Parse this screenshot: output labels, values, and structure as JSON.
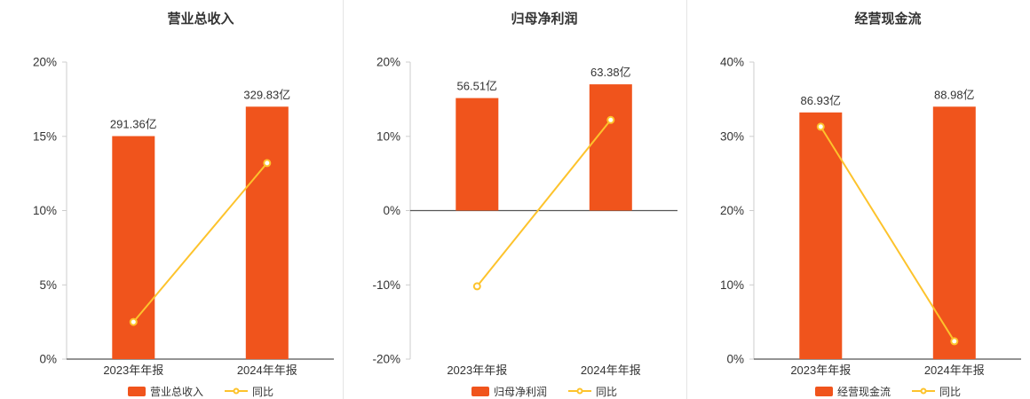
{
  "colors": {
    "bar": "#f0541c",
    "line": "#fdc32c",
    "title_text": "#333333",
    "axis_line": "#555555",
    "y_axis_line": "#cccccc",
    "tick_text": "#333333",
    "value_text": "#333333",
    "separator": "#e4e4e4",
    "background": "#ffffff"
  },
  "chart_data": [
    {
      "type": "bar+line",
      "title": "营业总收入",
      "categories": [
        "2023年年报",
        "2024年年报"
      ],
      "bar_series": {
        "name": "营业总收入",
        "unit": "亿",
        "values": [
          291.36,
          329.83
        ],
        "labels": [
          "291.36亿",
          "329.83亿"
        ]
      },
      "line_series": {
        "name": "同比",
        "unit": "%",
        "values": [
          2.5,
          13.2
        ]
      },
      "y_axis": {
        "min": 0,
        "max": 20,
        "ticks": [
          {
            "value": 0,
            "label": "0%"
          },
          {
            "value": 5,
            "label": "5%"
          },
          {
            "value": 10,
            "label": "10%"
          },
          {
            "value": 15,
            "label": "15%"
          },
          {
            "value": 20,
            "label": "20%"
          }
        ]
      },
      "legend": [
        "营业总收入",
        "同比"
      ],
      "grid": false,
      "legend_position": "bottom"
    },
    {
      "type": "bar+line",
      "title": "归母净利润",
      "categories": [
        "2023年年报",
        "2024年年报"
      ],
      "bar_series": {
        "name": "归母净利润",
        "unit": "亿",
        "values": [
          56.51,
          63.38
        ],
        "labels": [
          "56.51亿",
          "63.38亿"
        ]
      },
      "line_series": {
        "name": "同比",
        "unit": "%",
        "values": [
          -10.2,
          12.2
        ]
      },
      "y_axis": {
        "min": -20,
        "max": 20,
        "ticks": [
          {
            "value": -20,
            "label": "-20%"
          },
          {
            "value": -10,
            "label": "-10%"
          },
          {
            "value": 0,
            "label": "0%"
          },
          {
            "value": 10,
            "label": "10%"
          },
          {
            "value": 20,
            "label": "20%"
          }
        ]
      },
      "legend": [
        "归母净利润",
        "同比"
      ],
      "grid": false,
      "legend_position": "bottom"
    },
    {
      "type": "bar+line",
      "title": "经营现金流",
      "categories": [
        "2023年年报",
        "2024年年报"
      ],
      "bar_series": {
        "name": "经营现金流",
        "unit": "亿",
        "values": [
          86.93,
          88.98
        ],
        "labels": [
          "86.93亿",
          "88.98亿"
        ]
      },
      "line_series": {
        "name": "同比",
        "unit": "%",
        "values": [
          31.3,
          2.4
        ]
      },
      "y_axis": {
        "min": 0,
        "max": 40,
        "ticks": [
          {
            "value": 0,
            "label": "0%"
          },
          {
            "value": 10,
            "label": "10%"
          },
          {
            "value": 20,
            "label": "20%"
          },
          {
            "value": 30,
            "label": "30%"
          },
          {
            "value": 40,
            "label": "40%"
          }
        ]
      },
      "legend": [
        "经营现金流",
        "同比"
      ],
      "grid": false,
      "legend_position": "bottom"
    }
  ]
}
